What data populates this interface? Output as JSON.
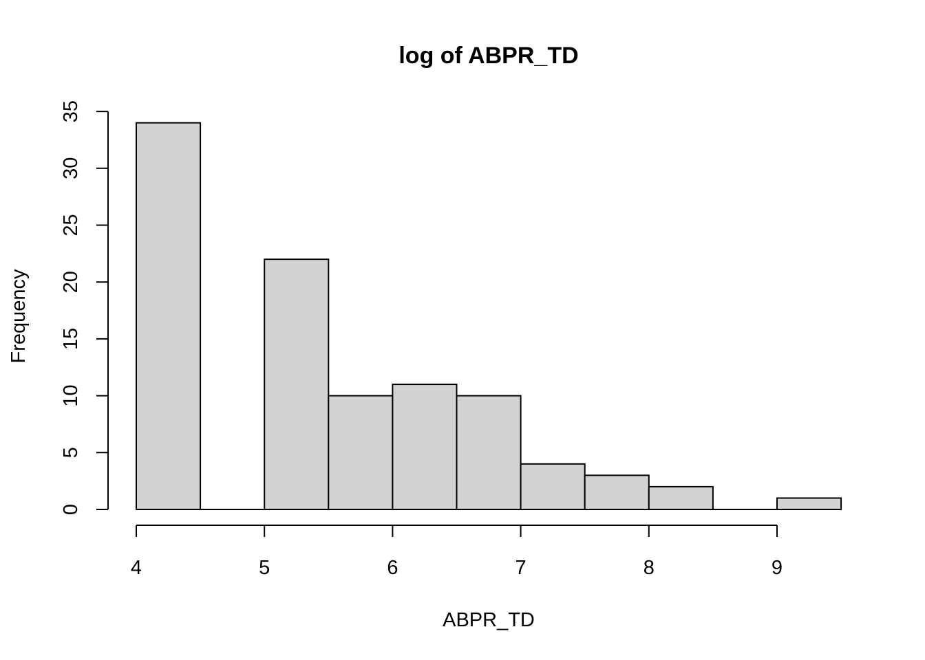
{
  "chart_data": {
    "type": "bar",
    "title": "log of ABPR_TD",
    "xlabel": "ABPR_TD",
    "ylabel": "Frequency",
    "bins": [
      {
        "start": 4.0,
        "end": 4.5,
        "count": 34
      },
      {
        "start": 4.5,
        "end": 5.0,
        "count": 0
      },
      {
        "start": 5.0,
        "end": 5.5,
        "count": 22
      },
      {
        "start": 5.5,
        "end": 6.0,
        "count": 10
      },
      {
        "start": 6.0,
        "end": 6.5,
        "count": 11
      },
      {
        "start": 6.5,
        "end": 7.0,
        "count": 10
      },
      {
        "start": 7.0,
        "end": 7.5,
        "count": 4
      },
      {
        "start": 7.5,
        "end": 8.0,
        "count": 3
      },
      {
        "start": 8.0,
        "end": 8.5,
        "count": 2
      },
      {
        "start": 8.5,
        "end": 9.0,
        "count": 0
      },
      {
        "start": 9.0,
        "end": 9.5,
        "count": 1
      }
    ],
    "x_ticks": [
      "4",
      "5",
      "6",
      "7",
      "8",
      "9"
    ],
    "y_ticks": [
      "0",
      "5",
      "10",
      "15",
      "20",
      "25",
      "30",
      "35"
    ],
    "xlim": [
      4,
      9.5
    ],
    "ylim": [
      0,
      35
    ],
    "grid": false,
    "bar_fill": "#d3d3d3",
    "bar_stroke": "#000000"
  }
}
